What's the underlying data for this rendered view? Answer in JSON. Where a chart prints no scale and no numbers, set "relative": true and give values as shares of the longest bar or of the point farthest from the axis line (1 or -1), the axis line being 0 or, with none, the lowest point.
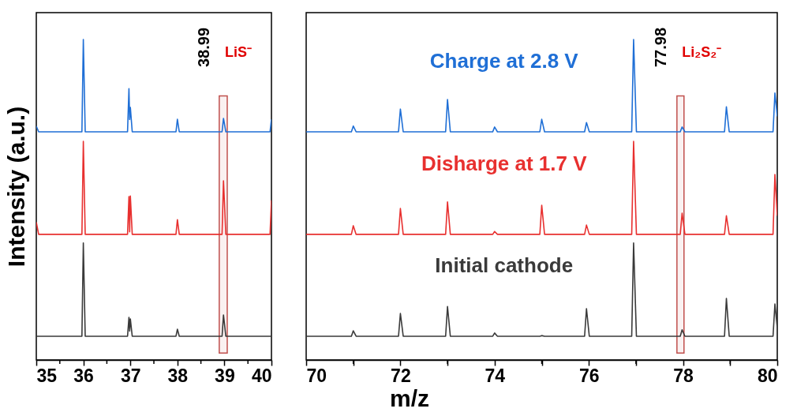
{
  "chart_data": [
    {
      "type": "line",
      "relative": true,
      "ylabel": "Intensity (a.u.)",
      "xlim": [
        35,
        40
      ],
      "xticks": [
        35,
        {
          "value": 35.5,
          "label": null
        },
        36,
        {
          "value": 36.5,
          "label": null
        },
        37,
        {
          "value": 37.5,
          "label": null
        },
        38,
        {
          "value": 38.5,
          "label": null
        },
        39,
        {
          "value": 39.5,
          "label": null
        },
        40
      ],
      "x": [
        35,
        35.05,
        35.97,
        36,
        36.04,
        36.94,
        36.97,
        36.985,
        37,
        37.04,
        37.97,
        38,
        38.04,
        38.95,
        38.98,
        39.03,
        39.97,
        40
      ],
      "series": [
        {
          "color": "#1f6fd6",
          "values": [
            0.73,
            0.712,
            0.712,
            1.0,
            0.712,
            0.712,
            0.847,
            0.75,
            0.788,
            0.712,
            0.712,
            0.751,
            0.712,
            0.712,
            0.754,
            0.712,
            0.712,
            0.751
          ]
        },
        {
          "color": "#e8302f",
          "values": [
            0.43,
            0.392,
            0.392,
            0.682,
            0.392,
            0.392,
            0.51,
            0.4,
            0.512,
            0.392,
            0.392,
            0.438,
            0.392,
            0.392,
            0.559,
            0.392,
            0.392,
            0.498
          ]
        },
        {
          "color": "#3a3a3a",
          "values": [
            0.074,
            0.074,
            0.074,
            0.365,
            0.074,
            0.074,
            0.133,
            0.09,
            0.128,
            0.074,
            0.074,
            0.096,
            0.074,
            0.074,
            0.14,
            0.074,
            0.074,
            0.074
          ]
        }
      ],
      "bands": [
        {
          "axis": "x",
          "from": 38.89,
          "to": 39.06,
          "color": "#c0504d"
        }
      ],
      "annotations": [
        "38.99",
        "LiS⁻"
      ]
    },
    {
      "type": "line",
      "relative": true,
      "xlabel": "m/z",
      "xlim": [
        70,
        80
      ],
      "xticks": [
        70,
        {
          "value": 71,
          "label": null
        },
        72,
        {
          "value": 73,
          "label": null
        },
        74,
        {
          "value": 75,
          "label": null
        },
        76,
        {
          "value": 77,
          "label": null
        },
        78,
        {
          "value": 79,
          "label": null
        },
        80
      ],
      "x": [
        70,
        70.96,
        71,
        71.06,
        71.96,
        72,
        72.06,
        72.96,
        73,
        73.06,
        73.96,
        74,
        74.06,
        74.96,
        75,
        75.06,
        75.91,
        75.95,
        76.01,
        76.91,
        76.95,
        77.01,
        77.94,
        77.98,
        78.04,
        78.88,
        78.92,
        78.98,
        79.91,
        79.95,
        80
      ],
      "series": [
        {
          "name": "Charge at 2.8 V",
          "color": "#1f6fd6",
          "values": [
            0.712,
            0.712,
            0.73,
            0.712,
            0.712,
            0.783,
            0.712,
            0.712,
            0.813,
            0.712,
            0.712,
            0.727,
            0.712,
            0.712,
            0.751,
            0.712,
            0.712,
            0.741,
            0.712,
            0.712,
            1.0,
            0.712,
            0.712,
            0.727,
            0.712,
            0.712,
            0.79,
            0.712,
            0.712,
            0.833,
            0.76
          ]
        },
        {
          "name": "Disharge at 1.7 V",
          "color": "#e8302f",
          "values": [
            0.392,
            0.392,
            0.419,
            0.392,
            0.392,
            0.473,
            0.392,
            0.392,
            0.493,
            0.392,
            0.392,
            0.401,
            0.392,
            0.392,
            0.483,
            0.392,
            0.392,
            0.421,
            0.392,
            0.392,
            0.682,
            0.392,
            0.392,
            0.458,
            0.392,
            0.392,
            0.45,
            0.392,
            0.392,
            0.579,
            0.45
          ]
        },
        {
          "name": "Initial cathode",
          "color": "#3a3a3a",
          "values": [
            0.074,
            0.074,
            0.091,
            0.074,
            0.074,
            0.145,
            0.074,
            0.074,
            0.167,
            0.074,
            0.074,
            0.084,
            0.074,
            0.074,
            0.076,
            0.074,
            0.074,
            0.16,
            0.074,
            0.074,
            0.365,
            0.074,
            0.074,
            0.094,
            0.074,
            0.074,
            0.192,
            0.074,
            0.074,
            0.175,
            0.1
          ]
        }
      ],
      "bands": [
        {
          "axis": "x",
          "from": 77.87,
          "to": 78.02,
          "color": "#c0504d"
        }
      ],
      "annotations": [
        "77.98",
        "Li₂S₂⁻"
      ]
    }
  ]
}
